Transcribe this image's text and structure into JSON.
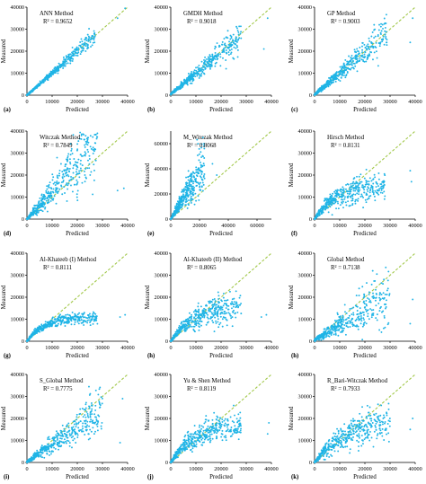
{
  "colors": {
    "point": "#1fb4e6",
    "diagonal": "#a2c84a",
    "axis": "#000000"
  },
  "chart_data": [
    {
      "type": "scatter",
      "panel": "(a)",
      "title": "ANN Method",
      "r2_label": "R² = 0.9652",
      "xlabel": "Predicted",
      "ylabel": "Measured",
      "xlim": [
        0,
        40000
      ],
      "ylim": [
        0,
        40000
      ],
      "xticks": [
        "0",
        "10000",
        "20000",
        "30000",
        "40000"
      ],
      "yticks": [
        "0",
        "10000",
        "20000",
        "30000",
        "40000"
      ],
      "diagonal_max": 40000,
      "scatter": {
        "kind": "linear",
        "xmax": 27000,
        "slope": 1.0,
        "noise": 0.07,
        "offset": 0,
        "outliers": [
          [
            39000,
            39500
          ],
          [
            36000,
            35000
          ]
        ]
      }
    },
    {
      "type": "scatter",
      "panel": "(b)",
      "title": "GMDH Method",
      "r2_label": "R² = 0.9018",
      "xlabel": "Predicted",
      "ylabel": "Measured",
      "xlim": [
        0,
        40000
      ],
      "ylim": [
        0,
        40000
      ],
      "xticks": [
        "0",
        "10000",
        "20000",
        "30000",
        "40000"
      ],
      "yticks": [
        "0",
        "10000",
        "20000",
        "30000",
        "40000"
      ],
      "diagonal_max": 40000,
      "scatter": {
        "kind": "linear",
        "xmax": 28000,
        "slope": 0.95,
        "noise": 0.14,
        "offset": 500,
        "outliers": [
          [
            38500,
            35000
          ],
          [
            37000,
            21000
          ]
        ]
      }
    },
    {
      "type": "scatter",
      "panel": "(c)",
      "title": "GP Method",
      "r2_label": "R² = 0.9003",
      "xlabel": "Predicted",
      "ylabel": "Measured",
      "xlim": [
        0,
        40000
      ],
      "ylim": [
        0,
        40000
      ],
      "xticks": [
        "0",
        "10000",
        "20000",
        "30000",
        "40000"
      ],
      "yticks": [
        "0",
        "10000",
        "20000",
        "30000",
        "40000"
      ],
      "diagonal_max": 40000,
      "scatter": {
        "kind": "linear",
        "xmax": 29000,
        "slope": 0.97,
        "noise": 0.15,
        "offset": 300,
        "outliers": [
          [
            39000,
            35000
          ],
          [
            38000,
            24000
          ]
        ]
      }
    },
    {
      "type": "scatter",
      "panel": "(d)",
      "title": "Witczak Method",
      "r2_label": "R² = 0.7849",
      "xlabel": "Predicted",
      "ylabel": "Measured",
      "xlim": [
        0,
        40000
      ],
      "ylim": [
        0,
        40000
      ],
      "xticks": [
        "0",
        "10000",
        "20000",
        "30000",
        "40000"
      ],
      "yticks": [
        "0",
        "10000",
        "20000",
        "30000",
        "40000"
      ],
      "diagonal_max": 40000,
      "scatter": {
        "kind": "linear",
        "xmax": 28000,
        "slope": 1.25,
        "noise": 0.25,
        "offset": 0,
        "outliers": [
          [
            38500,
            14000
          ],
          [
            36000,
            13000
          ]
        ]
      }
    },
    {
      "type": "scatter",
      "panel": "(e)",
      "title": "M_Witczak Method",
      "r2_label": "R² = 0.8068",
      "xlabel": "Predicted",
      "ylabel": "Measured",
      "xlim": [
        0,
        70000
      ],
      "ylim": [
        0,
        70000
      ],
      "xticks": [
        "0",
        "20000",
        "40000",
        "60000"
      ],
      "xtick_values": [
        0,
        20000,
        40000,
        60000
      ],
      "yticks": [
        "0",
        "20000",
        "40000",
        "60000"
      ],
      "ytick_values": [
        0,
        20000,
        40000,
        60000
      ],
      "diagonal_max": 70000,
      "scatter": {
        "kind": "linear",
        "xmax": 24000,
        "slope": 1.9,
        "noise": 0.25,
        "offset": 0,
        "outliers": [
          [
            32000,
            35000
          ],
          [
            29000,
            44000
          ]
        ]
      }
    },
    {
      "type": "scatter",
      "panel": "(f)",
      "title": "Hirsch Method",
      "r2_label": "R² = 0.8131",
      "xlabel": "Predicted",
      "ylabel": "Measured",
      "xlim": [
        0,
        40000
      ],
      "ylim": [
        0,
        40000
      ],
      "xticks": [
        "0",
        "10000",
        "20000",
        "30000",
        "40000"
      ],
      "yticks": [
        "0",
        "10000",
        "20000",
        "30000",
        "40000"
      ],
      "diagonal_max": 40000,
      "scatter": {
        "kind": "sat",
        "xmax": 28000,
        "ymax": 16000,
        "k": 9000,
        "noise": 0.22,
        "outliers": [
          [
            38500,
            17000
          ],
          [
            38000,
            22000
          ]
        ]
      }
    },
    {
      "type": "scatter",
      "panel": "(g)",
      "title": "Al-Khateeb (I) Method",
      "r2_label": "R² = 0.8111",
      "xlabel": "Predicted",
      "ylabel": "Measured",
      "xlim": [
        0,
        40000
      ],
      "ylim": [
        0,
        40000
      ],
      "xticks": [
        "0",
        "10000",
        "20000",
        "30000",
        "40000"
      ],
      "yticks": [
        "0",
        "10000",
        "20000",
        "30000",
        "40000"
      ],
      "diagonal_max": 40000,
      "scatter": {
        "kind": "sat",
        "xmax": 28000,
        "ymax": 11000,
        "k": 7000,
        "noise": 0.13,
        "outliers": [
          [
            39000,
            12000
          ],
          [
            37000,
            11000
          ]
        ]
      }
    },
    {
      "type": "scatter",
      "panel": "(h)",
      "title": "Al-Khateeb (II) Method",
      "r2_label": "R² = 0.8065",
      "xlabel": "Predicted",
      "ylabel": "Measured",
      "xlim": [
        0,
        40000
      ],
      "ylim": [
        0,
        40000
      ],
      "xticks": [
        "0",
        "10000",
        "20000",
        "30000",
        "40000"
      ],
      "yticks": [
        "0",
        "10000",
        "20000",
        "30000",
        "40000"
      ],
      "diagonal_max": 40000,
      "scatter": {
        "kind": "sat",
        "xmax": 28000,
        "ymax": 17000,
        "k": 10000,
        "noise": 0.2,
        "outliers": [
          [
            38000,
            12000
          ],
          [
            36000,
            11000
          ]
        ]
      }
    },
    {
      "type": "scatter",
      "panel": "(h)",
      "title": "Global Method",
      "r2_label": "R² = 0.7138",
      "xlabel": "Predicted",
      "ylabel": "Measured",
      "xlim": [
        0,
        40000
      ],
      "ylim": [
        0,
        40000
      ],
      "xticks": [
        "0",
        "10000",
        "20000",
        "30000",
        "40000"
      ],
      "yticks": [
        "0",
        "10000",
        "20000",
        "30000",
        "40000"
      ],
      "diagonal_max": 40000,
      "scatter": {
        "kind": "linear",
        "xmax": 30000,
        "slope": 0.7,
        "noise": 0.3,
        "offset": 500,
        "outliers": [
          [
            39000,
            19000
          ],
          [
            38000,
            8000
          ]
        ]
      }
    },
    {
      "type": "scatter",
      "panel": "(i)",
      "title": "S_Global Method",
      "r2_label": "R² = 0.7775",
      "xlabel": "Predicted",
      "ylabel": "Measured",
      "xlim": [
        0,
        40000
      ],
      "ylim": [
        0,
        40000
      ],
      "xticks": [
        "0",
        "10000",
        "20000",
        "30000",
        "40000"
      ],
      "yticks": [
        "0",
        "10000",
        "20000",
        "30000",
        "40000"
      ],
      "diagonal_max": 40000,
      "scatter": {
        "kind": "linear",
        "xmax": 30000,
        "slope": 0.8,
        "noise": 0.25,
        "offset": 300,
        "outliers": [
          [
            38000,
            29000
          ],
          [
            37000,
            9000
          ]
        ]
      }
    },
    {
      "type": "scatter",
      "panel": "(j)",
      "title": "Yu & Shen Method",
      "r2_label": "R² = 0.8119",
      "xlabel": "Predicted",
      "ylabel": "Measured",
      "xlim": [
        0,
        40000
      ],
      "ylim": [
        0,
        40000
      ],
      "xticks": [
        "0",
        "10000",
        "20000",
        "30000",
        "40000"
      ],
      "yticks": [
        "0",
        "10000",
        "20000",
        "30000",
        "40000"
      ],
      "diagonal_max": 40000,
      "scatter": {
        "kind": "sat",
        "xmax": 28000,
        "ymax": 18000,
        "k": 10000,
        "noise": 0.22,
        "outliers": [
          [
            39000,
            18000
          ],
          [
            38500,
            13000
          ]
        ]
      }
    },
    {
      "type": "scatter",
      "panel": "(k)",
      "title": "R_Bari-Witczak Method",
      "r2_label": "R² = 0.7933",
      "xlabel": "Predicted",
      "ylabel": "Measured",
      "xlim": [
        0,
        40000
      ],
      "ylim": [
        0,
        40000
      ],
      "xticks": [
        "0",
        "10000",
        "20000",
        "30000",
        "40000"
      ],
      "yticks": [
        "0",
        "10000",
        "20000",
        "30000",
        "40000"
      ],
      "diagonal_max": 40000,
      "scatter": {
        "kind": "sat",
        "xmax": 30000,
        "ymax": 20000,
        "k": 13000,
        "noise": 0.24,
        "outliers": [
          [
            39000,
            20000
          ],
          [
            38000,
            15000
          ]
        ]
      }
    }
  ]
}
